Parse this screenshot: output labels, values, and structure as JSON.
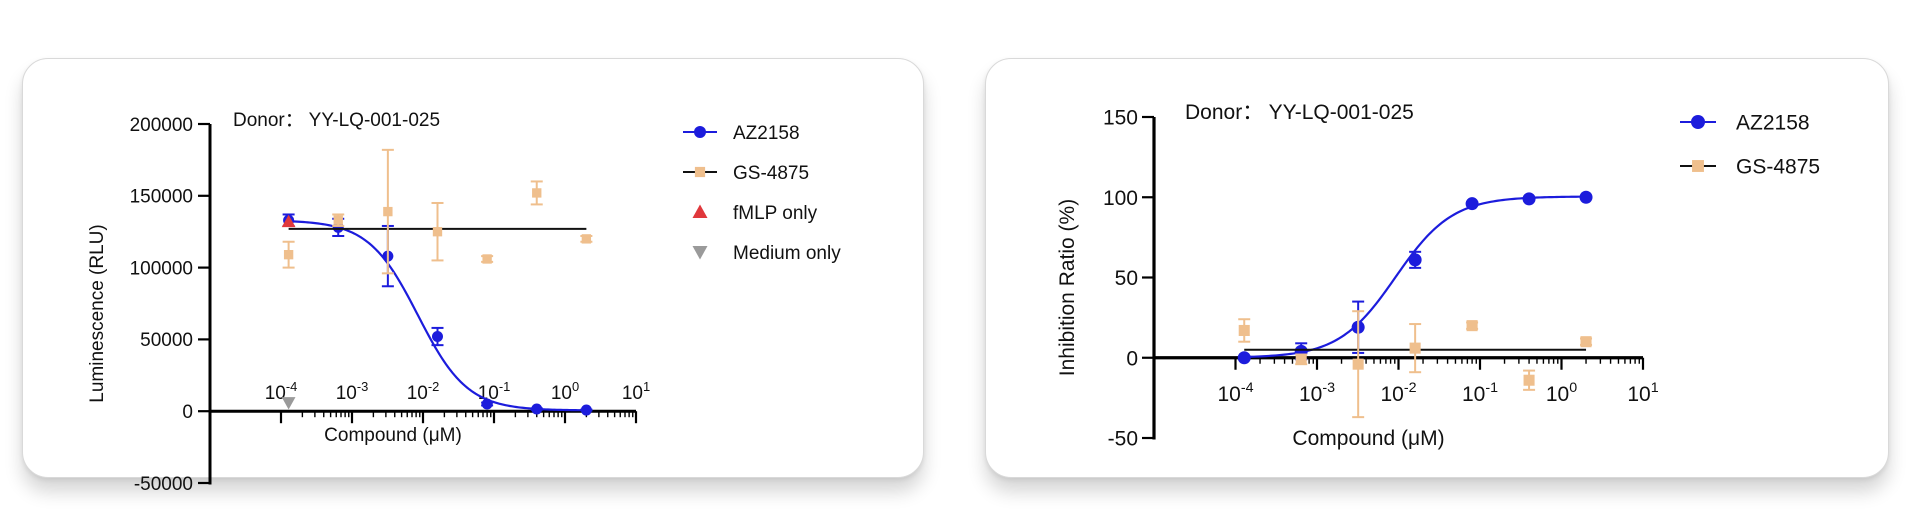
{
  "chart_data": [
    {
      "type": "scatter",
      "title": "Donor： YY-LQ-001-025",
      "xlabel": "Compound (μM)",
      "ylabel": "Luminescence (RLU)",
      "x_scale": "log10",
      "xlim": [
        1e-05,
        10
      ],
      "ylim": [
        -50000,
        200000
      ],
      "x_ticks": [
        {
          "value": 0.0001,
          "base": "10",
          "exp": "-4"
        },
        {
          "value": 0.001,
          "base": "10",
          "exp": "-3"
        },
        {
          "value": 0.01,
          "base": "10",
          "exp": "-2"
        },
        {
          "value": 0.1,
          "base": "10",
          "exp": "-1"
        },
        {
          "value": 1,
          "base": "10",
          "exp": "0"
        },
        {
          "value": 10,
          "base": "10",
          "exp": "1"
        }
      ],
      "y_ticks": [
        {
          "value": -50000,
          "label": "-50000"
        },
        {
          "value": 0,
          "label": "0"
        },
        {
          "value": 50000,
          "label": "50000"
        },
        {
          "value": 100000,
          "label": "100000"
        },
        {
          "value": 150000,
          "label": "150000"
        },
        {
          "value": 200000,
          "label": "200000"
        }
      ],
      "grid": false,
      "legend_position": "right",
      "series": [
        {
          "name": "AZ2158",
          "color": "#1c1cdc",
          "marker": "circle",
          "x": [
            0.000128,
            0.00064,
            0.0032,
            0.016,
            0.08,
            0.4,
            2.0
          ],
          "y": [
            133000,
            128000,
            108000,
            52000,
            5000,
            1500,
            800
          ],
          "err": [
            4000,
            6000,
            21000,
            6000,
            1000,
            500,
            300
          ],
          "fit": {
            "top": 133000,
            "bottom": 500,
            "ec50": 0.0085,
            "hill": 1.25
          }
        },
        {
          "name": "GS-4875",
          "color": "#efbf8d",
          "marker": "square",
          "x": [
            0.000128,
            0.00064,
            0.0032,
            0.016,
            0.08,
            0.4,
            2.0
          ],
          "y": [
            109000,
            133000,
            139000,
            125000,
            106000,
            152000,
            120000
          ],
          "err": [
            9000,
            4000,
            43000,
            20000,
            2000,
            8000,
            2000
          ],
          "fit_constant": 127000
        },
        {
          "name": "fMLP only",
          "color": "#e0383c",
          "marker": "triangle-up",
          "x": [
            0.000128
          ],
          "y": [
            132000
          ],
          "err": [
            0
          ]
        },
        {
          "name": "Medium only",
          "color": "#9a9a9a",
          "marker": "triangle-down",
          "x": [
            0.000128
          ],
          "y": [
            6000
          ],
          "err": [
            0
          ]
        }
      ]
    },
    {
      "type": "scatter",
      "title": "Donor： YY-LQ-001-025",
      "xlabel": "Compound (μM)",
      "ylabel": "Inhibition Ratio (%)",
      "x_scale": "log10",
      "xlim": [
        1e-05,
        10
      ],
      "ylim": [
        -50,
        150
      ],
      "x_ticks": [
        {
          "value": 0.0001,
          "base": "10",
          "exp": "-4"
        },
        {
          "value": 0.001,
          "base": "10",
          "exp": "-3"
        },
        {
          "value": 0.01,
          "base": "10",
          "exp": "-2"
        },
        {
          "value": 0.1,
          "base": "10",
          "exp": "-1"
        },
        {
          "value": 1,
          "base": "10",
          "exp": "0"
        },
        {
          "value": 10,
          "base": "10",
          "exp": "1"
        }
      ],
      "y_ticks": [
        {
          "value": -50,
          "label": "-50"
        },
        {
          "value": 0,
          "label": "0"
        },
        {
          "value": 50,
          "label": "50"
        },
        {
          "value": 100,
          "label": "100"
        },
        {
          "value": 150,
          "label": "150"
        }
      ],
      "grid": false,
      "legend_position": "top-right",
      "series": [
        {
          "name": "AZ2158",
          "color": "#1c1cdc",
          "marker": "circle",
          "x": [
            0.000128,
            0.00064,
            0.0032,
            0.016,
            0.08,
            0.4,
            2.0
          ],
          "y": [
            0,
            4,
            19,
            61,
            96,
            99,
            100
          ],
          "err": [
            1,
            5,
            16,
            5,
            1,
            0.5,
            0.3
          ],
          "fit": {
            "top": 100.5,
            "bottom": 0,
            "ec50": 0.0092,
            "hill": 1.25
          }
        },
        {
          "name": "GS-4875",
          "color": "#efbf8d",
          "marker": "square",
          "x": [
            0.000128,
            0.00064,
            0.0032,
            0.016,
            0.08,
            0.4,
            2.0
          ],
          "y": [
            17,
            -1,
            -4,
            6,
            20,
            -14,
            10
          ],
          "err": [
            7,
            3,
            33,
            15,
            2,
            6,
            2
          ],
          "fit_constant": 5
        }
      ]
    }
  ]
}
